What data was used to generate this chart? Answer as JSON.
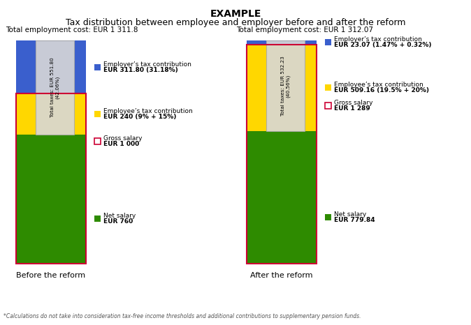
{
  "title_line1": "EXAMPLE",
  "title_line2": "Tax distribution between employee and employer before and after the reform",
  "footnote": "*Calculations do not take into consideration tax-free income thresholds and additional contributions to supplementary pension funds.",
  "before": {
    "total_cost_label": "Total employment cost: EUR 1 311.8",
    "employer_tax": 311.8,
    "employee_tax": 240.0,
    "net_salary": 760.0,
    "gross_salary": 1000.0,
    "total_taxes": 551.8,
    "total_taxes_pct": "(42.06%)",
    "total_taxes_label": "Total taxes: EUR 551.80",
    "employer_label1": "Employer’s tax contribution",
    "employer_label2": "EUR 311.80 (31.18%)",
    "employee_label1": "Employee’s tax contribution",
    "employee_label2": "EUR 240 (9% + 15%)",
    "gross_label1": "Gross salary",
    "gross_label2": "EUR 1 000",
    "net_label1": "Net salary",
    "net_label2": "EUR 760",
    "xlabel": "Before the reform"
  },
  "after": {
    "total_cost_label": "Total employment cost: EUR 1 312.07",
    "employer_tax": 23.07,
    "employee_tax": 509.16,
    "net_salary": 779.84,
    "gross_salary": 1289.0,
    "total_taxes": 532.23,
    "total_taxes_pct": "(40.56%)",
    "total_taxes_label": "Total taxes: EUR 532.23",
    "employer_label1": "Employer’s tax contribution",
    "employer_label2": "EUR 23.07 (1.47% + 0.32%)",
    "employee_label1": "Employee’s tax contribution",
    "employee_label2": "EUR 509.16 (19.5% + 20%)",
    "gross_label1": "Gross salary",
    "gross_label2": "EUR 1 289",
    "net_label1": "Net salary",
    "net_label2": "EUR 779.84",
    "xlabel": "After the reform"
  },
  "color_employer": "#3A5FCD",
  "color_employee": "#FFD700",
  "color_net": "#2E8B00",
  "color_gross_border": "#CC0033",
  "background": "#FFFFFF",
  "fig_width": 6.74,
  "fig_height": 4.66,
  "dpi": 100
}
